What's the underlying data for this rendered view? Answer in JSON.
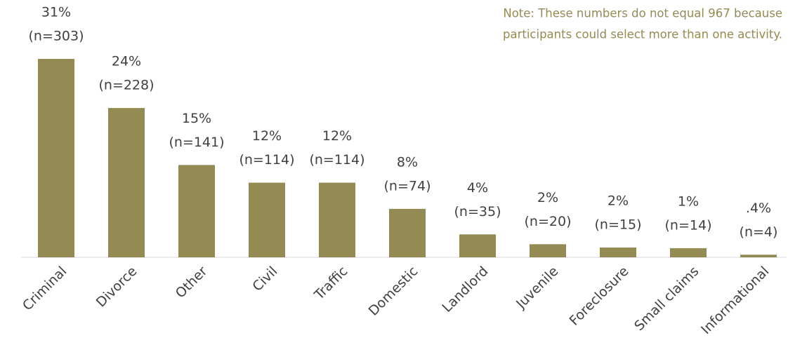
{
  "chart_data": {
    "type": "bar",
    "note": [
      "Note: These numbers do not equal 967 because",
      "participants could select more than one activity."
    ],
    "categories": [
      "Criminal",
      "Divorce",
      "Other",
      "Civil",
      "Traffic",
      "Domestic",
      "Landlord",
      "Juvenile",
      "Foreclosure",
      "Small claims",
      "Informational"
    ],
    "values": [
      303,
      228,
      141,
      114,
      114,
      74,
      35,
      20,
      15,
      14,
      4
    ],
    "value_labels": [
      "(n=303)",
      "(n=228)",
      "(n=141)",
      "(n=114)",
      "(n=114)",
      "(n=74)",
      "(n=35)",
      "(n=20)",
      "(n=15)",
      "(n=14)",
      "(n=4)"
    ],
    "percentages": [
      {
        "value": 31,
        "label": "31%"
      },
      {
        "value": 24,
        "label": "24%"
      },
      {
        "value": 15,
        "label": "15%"
      },
      {
        "value": 12,
        "label": "12%"
      },
      {
        "value": 12,
        "label": "12%"
      },
      {
        "value": 8,
        "label": "8%"
      },
      {
        "value": 4,
        "label": "4%"
      },
      {
        "value": 2,
        "label": "2%"
      },
      {
        "value": 2,
        "label": "2%"
      },
      {
        "value": 1,
        "label": "1%"
      },
      {
        "value": 0.4,
        "label": ".4%"
      }
    ],
    "color": "#948a54"
  }
}
